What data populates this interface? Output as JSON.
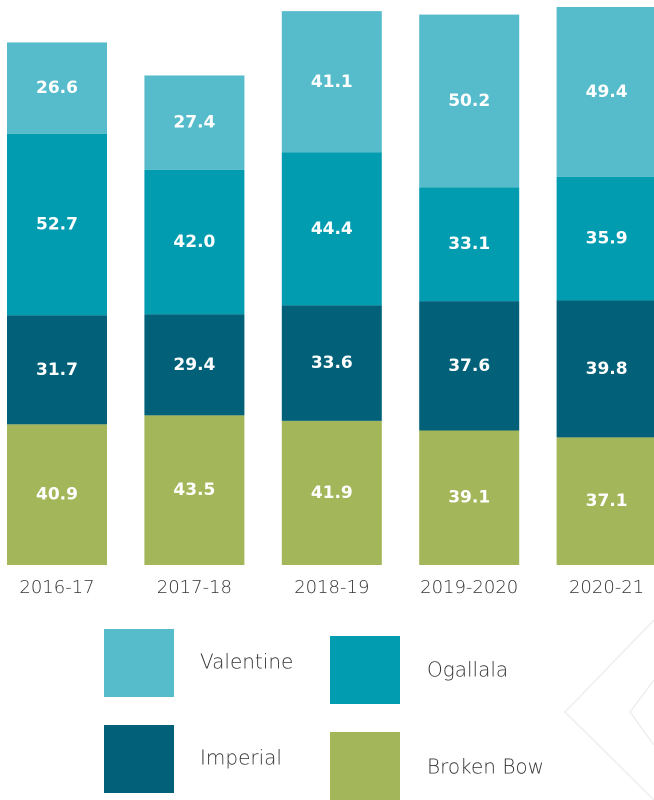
{
  "chart_data": {
    "type": "stacked_bar",
    "categories": [
      "2016-17",
      "2017-18",
      "2018-19",
      "2019-2020",
      "2020-21"
    ],
    "series": [
      {
        "name": "Valentine",
        "color": "#56bccb",
        "values": [
          26.6,
          27.4,
          41.1,
          50.2,
          49.4
        ],
        "value_labels": [
          "26.6",
          "27.4",
          "41.1",
          "50.2",
          "49.4"
        ]
      },
      {
        "name": "Ogallala",
        "color": "#029cb1",
        "values": [
          52.7,
          42.0,
          44.4,
          33.1,
          35.9
        ],
        "value_labels": [
          "52.7",
          "42.0",
          "44.4",
          "33.1",
          "35.9"
        ]
      },
      {
        "name": "Imperial",
        "color": "#026179",
        "values": [
          31.7,
          29.4,
          33.6,
          37.6,
          39.8
        ],
        "value_labels": [
          "31.7",
          "29.4",
          "33.6",
          "37.6",
          "39.8"
        ]
      },
      {
        "name": "Broken Bow",
        "color": "#a4b65a",
        "values": [
          40.9,
          43.5,
          41.9,
          39.1,
          37.1
        ],
        "value_labels": [
          "40.9",
          "43.5",
          "41.9",
          "39.1",
          "37.1"
        ]
      }
    ]
  }
}
